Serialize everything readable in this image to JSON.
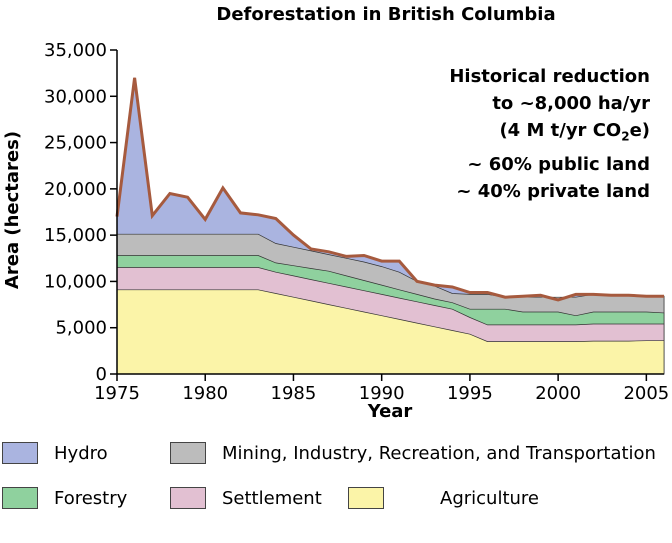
{
  "chart_data": {
    "type": "area",
    "title": "Deforestation in British Columbia",
    "xlabel": "Year",
    "ylabel": "Area (hectares)",
    "xlim": [
      1975,
      2006
    ],
    "ylim": [
      0,
      35000
    ],
    "x_ticks": [
      "1975",
      "1980",
      "1985",
      "1990",
      "1995",
      "2000",
      "2005"
    ],
    "y_ticks": [
      "0",
      "5,000",
      "10,000",
      "15,000",
      "20,000",
      "25,000",
      "30,000",
      "35,000"
    ],
    "x": [
      1975,
      1976,
      1977,
      1978,
      1979,
      1980,
      1981,
      1982,
      1983,
      1984,
      1985,
      1986,
      1987,
      1988,
      1989,
      1990,
      1991,
      1992,
      1993,
      1994,
      1995,
      1996,
      1997,
      1998,
      1999,
      2000,
      2001,
      2002,
      2003,
      2004,
      2005,
      2006
    ],
    "series": [
      {
        "name": "Agriculture",
        "color": "#fbf4a8",
        "cumulative": [
          9100,
          9100,
          9100,
          9100,
          9100,
          9100,
          9100,
          9100,
          9100,
          8700,
          8300,
          7900,
          7500,
          7100,
          6700,
          6300,
          5900,
          5500,
          5100,
          4700,
          4300,
          3500,
          3500,
          3500,
          3500,
          3500,
          3500,
          3550,
          3550,
          3550,
          3600,
          3600
        ]
      },
      {
        "name": "Settlement",
        "color": "#e2c0d2",
        "cumulative": [
          11500,
          11500,
          11500,
          11500,
          11500,
          11500,
          11500,
          11500,
          11500,
          11000,
          10600,
          10200,
          9800,
          9400,
          9000,
          8600,
          8200,
          7800,
          7400,
          7000,
          6100,
          5300,
          5300,
          5300,
          5300,
          5300,
          5300,
          5400,
          5400,
          5400,
          5400,
          5400
        ]
      },
      {
        "name": "Forestry",
        "color": "#8fd19e",
        "cumulative": [
          12800,
          12800,
          12800,
          12800,
          12800,
          12800,
          12800,
          12800,
          12800,
          12000,
          11700,
          11400,
          11100,
          10600,
          10100,
          9600,
          9100,
          8600,
          8100,
          7700,
          7000,
          7000,
          7000,
          6700,
          6700,
          6700,
          6300,
          6700,
          6700,
          6700,
          6700,
          6600
        ]
      },
      {
        "name": "Mining, Industry, Recreation, and Transportation",
        "color": "#bcbcbc",
        "cumulative": [
          15100,
          15100,
          15100,
          15100,
          15100,
          15100,
          15100,
          15100,
          15100,
          14100,
          13700,
          13300,
          12900,
          12500,
          12100,
          11600,
          11000,
          10000,
          9500,
          8700,
          8600,
          8600,
          8300,
          8300,
          8300,
          8300,
          8300,
          8600,
          8500,
          8500,
          8400,
          8400
        ]
      },
      {
        "name": "Hydro",
        "color": "#aab4e0",
        "cumulative": [
          17000,
          32000,
          17100,
          19500,
          19100,
          16700,
          20100,
          17400,
          17200,
          16800,
          15000,
          13500,
          13200,
          12700,
          12800,
          12200,
          12200,
          10000,
          9600,
          9400,
          8800,
          8800,
          8300,
          8400,
          8500,
          8000,
          8600,
          8600,
          8500,
          8500,
          8400,
          8400
        ]
      }
    ]
  },
  "annotation": {
    "line1": "Historical reduction",
    "line2": "to ~8,000 ha/yr",
    "line3_pre": "(4 M t/yr CO",
    "line3_sub": "2",
    "line3_post": "e)",
    "line4": "~ 60% public land",
    "line5": "~ 40% private land"
  },
  "legend": [
    {
      "label": "Hydro",
      "color": "#aab4e0"
    },
    {
      "label": "Mining, Industry, Recreation, and Transportation",
      "color": "#bcbcbc"
    },
    {
      "label": "Forestry",
      "color": "#8fd19e"
    },
    {
      "label": "Settlement",
      "color": "#e2c0d2"
    },
    {
      "label": "Agriculture",
      "color": "#fbf4a8"
    }
  ],
  "outline_color": "#a65a3e"
}
